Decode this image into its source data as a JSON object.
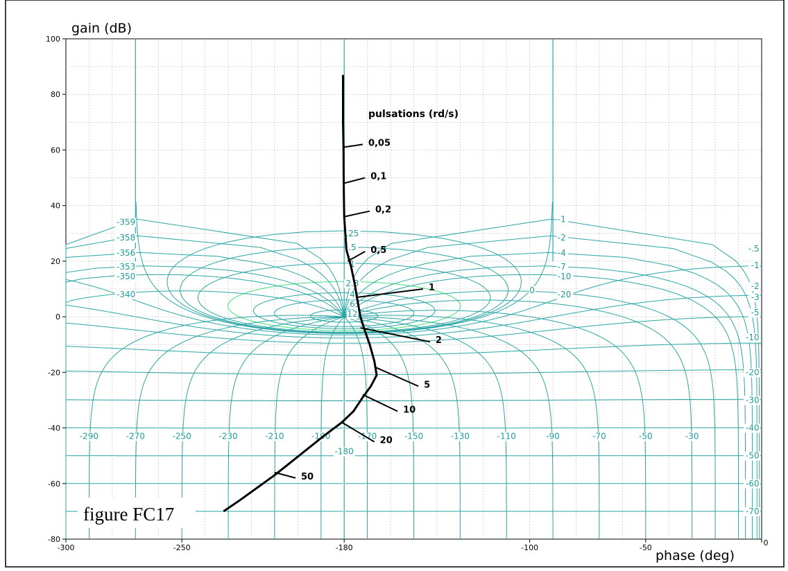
{
  "chart_data": {
    "type": "line",
    "title": "",
    "xlabel": "phase (deg)",
    "ylabel": "gain (dB)",
    "xlim": [
      -300,
      0
    ],
    "ylim": [
      -80,
      100
    ],
    "x_ticks": [
      -300,
      -250,
      -180,
      -100,
      -50,
      0
    ],
    "y_ticks": [
      -80,
      -60,
      -40,
      -20,
      0,
      20,
      40,
      60,
      80,
      100
    ],
    "grid": true,
    "figure_label": "figure FC17",
    "annotation_title": "pulsations (rd/s)",
    "series": [
      {
        "points": [
          {
            "x": -180.5,
            "y": 87
          },
          {
            "x": -180.5,
            "y": 70
          },
          {
            "x": -180.3,
            "y": 61
          },
          {
            "x": -180.2,
            "y": 48
          },
          {
            "x": -180.0,
            "y": 36
          },
          {
            "x": -179.0,
            "y": 24
          },
          {
            "x": -177.0,
            "y": 18
          },
          {
            "x": -175.5,
            "y": 12
          },
          {
            "x": -174.5,
            "y": 7
          },
          {
            "x": -173.0,
            "y": 0
          },
          {
            "x": -171.5,
            "y": -4
          },
          {
            "x": -169.0,
            "y": -10
          },
          {
            "x": -167.0,
            "y": -16
          },
          {
            "x": -166.0,
            "y": -21
          },
          {
            "x": -168.5,
            "y": -25
          },
          {
            "x": -172.0,
            "y": -29
          },
          {
            "x": -176.0,
            "y": -34
          },
          {
            "x": -181.0,
            "y": -38
          },
          {
            "x": -189.0,
            "y": -43
          },
          {
            "x": -201.0,
            "y": -51
          },
          {
            "x": -210.0,
            "y": -57
          },
          {
            "x": -225.0,
            "y": -66
          },
          {
            "x": -232.0,
            "y": -70
          }
        ]
      }
    ],
    "frequency_labels": [
      {
        "label": "0,05",
        "at": [
          -180.3,
          61
        ],
        "to": [
          -172,
          62
        ]
      },
      {
        "label": "0,1",
        "at": [
          -180.2,
          48
        ],
        "to": [
          -171,
          50
        ]
      },
      {
        "label": "0,2",
        "at": [
          -180.0,
          36
        ],
        "to": [
          -169,
          38
        ]
      },
      {
        "label": "0,5",
        "at": [
          -178.5,
          20
        ],
        "to": [
          -171,
          23.5
        ]
      },
      {
        "label": "1",
        "at": [
          -174.5,
          7
        ],
        "to": [
          -146,
          10
        ]
      },
      {
        "label": "2",
        "at": [
          -173.0,
          -4
        ],
        "to": [
          -143,
          -9
        ]
      },
      {
        "label": "5",
        "at": [
          -167.0,
          -18
        ],
        "to": [
          -148,
          -25
        ]
      },
      {
        "label": "10",
        "at": [
          -172.0,
          -28
        ],
        "to": [
          -157,
          -34
        ]
      },
      {
        "label": "20",
        "at": [
          -181.0,
          -38
        ],
        "to": [
          -167,
          -45
        ]
      },
      {
        "label": "50",
        "at": [
          -210.0,
          -56
        ],
        "to": [
          -201,
          -58
        ]
      }
    ],
    "nichols_chart": {
      "closed_loop_gain_labels_left": [
        "-359",
        "-358",
        "-356",
        "-353",
        "-350",
        "-340"
      ],
      "closed_loop_gain_labels_right": [
        "-1",
        "-2",
        "-4",
        "-7",
        "-10",
        "-20"
      ],
      "closed_loop_gain_labels_far_right": [
        "-.5",
        "-1",
        "-2",
        "-3",
        "-5",
        "-10",
        "-20",
        "-30",
        "-40",
        "-50",
        "-60",
        "-70"
      ],
      "closed_loop_magnitude_labels_center": [
        ".25",
        ".5",
        "1",
        "2.3",
        "4",
        "6",
        "12",
        "0"
      ],
      "phase_contour_labels": [
        "-290",
        "-270",
        "-250",
        "-230",
        "-210",
        "-190",
        "-170",
        "-150",
        "-130",
        "-110",
        "-90",
        "-70",
        "-50",
        "-30",
        "-180"
      ]
    }
  }
}
